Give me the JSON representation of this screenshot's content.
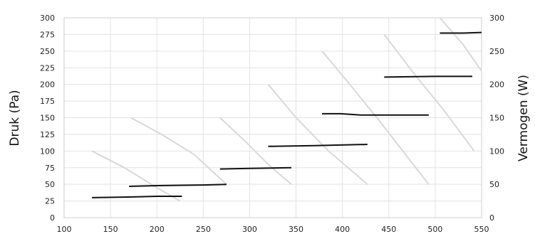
{
  "chart_data": {
    "type": "line",
    "title": "",
    "xlabel": "",
    "ylabel": "Druk (Pa)",
    "y2label": "Vermogen (W)",
    "xlim": [
      100,
      550
    ],
    "ylim": [
      0,
      300
    ],
    "y2lim": [
      0,
      300
    ],
    "x_ticks": [
      "100",
      "150",
      "200",
      "250",
      "300",
      "350",
      "400",
      "450",
      "500",
      "550"
    ],
    "y_ticks": [
      "0",
      "25",
      "50",
      "75",
      "100",
      "125",
      "150",
      "175",
      "200",
      "225",
      "250",
      "275",
      "300"
    ],
    "y2_ticks": [
      "0",
      "50",
      "100",
      "150",
      "200",
      "250",
      "300"
    ],
    "grid": true,
    "legend": "none",
    "colors": {
      "pressure": "#d9d9d9",
      "power": "#111111"
    },
    "pressure_series": [
      {
        "x": [
          130,
          165,
          200,
          225
        ],
        "y": [
          100,
          75,
          45,
          25
        ]
      },
      {
        "x": [
          172,
          205,
          240,
          275
        ],
        "y": [
          150,
          125,
          95,
          50
        ]
      },
      {
        "x": [
          268,
          295,
          320,
          345
        ],
        "y": [
          150,
          115,
          80,
          50
        ]
      },
      {
        "x": [
          320,
          350,
          385,
          427
        ],
        "y": [
          200,
          150,
          100,
          50
        ]
      },
      {
        "x": [
          378,
          405,
          440,
          493
        ],
        "y": [
          250,
          205,
          145,
          50
        ]
      },
      {
        "x": [
          445,
          475,
          510,
          542
        ],
        "y": [
          275,
          220,
          160,
          100
        ]
      },
      {
        "x": [
          505,
          530,
          550
        ],
        "y": [
          300,
          260,
          220
        ]
      }
    ],
    "power_series": [
      {
        "x": [
          130,
          170,
          200,
          227
        ],
        "y": [
          30,
          31,
          32,
          32
        ]
      },
      {
        "x": [
          170,
          200,
          250,
          275
        ],
        "y": [
          47,
          48,
          49,
          50
        ]
      },
      {
        "x": [
          268,
          300,
          345
        ],
        "y": [
          73,
          74,
          75
        ]
      },
      {
        "x": [
          320,
          370,
          427
        ],
        "y": [
          107,
          108,
          110
        ]
      },
      {
        "x": [
          378,
          398,
          420,
          450,
          493
        ],
        "y": [
          156,
          156,
          154,
          154,
          154
        ]
      },
      {
        "x": [
          445,
          500,
          540
        ],
        "y": [
          211,
          212,
          212
        ]
      },
      {
        "x": [
          505,
          530,
          550
        ],
        "y": [
          277,
          277,
          278
        ]
      }
    ]
  }
}
